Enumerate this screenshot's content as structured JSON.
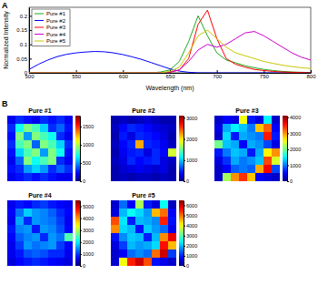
{
  "chart_data": [
    {
      "type": "line",
      "panel_label": "A",
      "x_label": "Wavelength (nm)",
      "y_label": "Normalized Intensity",
      "x": [
        500,
        510,
        520,
        530,
        540,
        550,
        560,
        570,
        580,
        590,
        600,
        610,
        620,
        630,
        640,
        650,
        660,
        670,
        680,
        690,
        700,
        710,
        720,
        730,
        740,
        750,
        760,
        770,
        780,
        790,
        800
      ],
      "xlim": [
        500,
        800
      ],
      "xticks": [
        500,
        550,
        600,
        650,
        700,
        750,
        800
      ],
      "ylim": [
        0,
        0.23
      ],
      "yticks": [
        0,
        0.05,
        0.1,
        0.15,
        0.2
      ],
      "legend": "upper left",
      "series": [
        {
          "name": "Pure #1",
          "color": "#1fa81f",
          "values": [
            0,
            0,
            0,
            0,
            0,
            0,
            0,
            0,
            0,
            0,
            0,
            0,
            0,
            0,
            0.003,
            0.01,
            0.04,
            0.11,
            0.2,
            0.13,
            0.07,
            0.045,
            0.035,
            0.025,
            0.018,
            0.012,
            0.008,
            0.005,
            0.003,
            0.002,
            0.001
          ]
        },
        {
          "name": "Pure #2",
          "color": "#0000ff",
          "values": [
            0.012,
            0.03,
            0.045,
            0.057,
            0.065,
            0.07,
            0.073,
            0.075,
            0.074,
            0.07,
            0.064,
            0.056,
            0.047,
            0.036,
            0.025,
            0.014,
            0.006,
            0.002,
            0,
            0,
            0,
            0,
            0,
            0,
            0,
            0,
            0,
            0,
            0,
            0,
            0
          ]
        },
        {
          "name": "Pure #3",
          "color": "#ff0000",
          "values": [
            0,
            0,
            0,
            0,
            0,
            0,
            0,
            0,
            0,
            0,
            0,
            0,
            0,
            0,
            0,
            0.002,
            0.01,
            0.05,
            0.17,
            0.22,
            0.12,
            0.05,
            0.03,
            0.02,
            0.012,
            0.008,
            0.005,
            0.003,
            0.002,
            0.001,
            0
          ]
        },
        {
          "name": "Pure #4",
          "color": "#cc00cc",
          "values": [
            0,
            0,
            0,
            0,
            0,
            0,
            0,
            0,
            0,
            0,
            0,
            0,
            0,
            0,
            0,
            0.003,
            0.01,
            0.04,
            0.08,
            0.1,
            0.09,
            0.1,
            0.12,
            0.14,
            0.145,
            0.13,
            0.11,
            0.09,
            0.07,
            0.055,
            0.045
          ]
        },
        {
          "name": "Pure #5",
          "color": "#c8c800",
          "values": [
            0,
            0,
            0,
            0,
            0,
            0,
            0,
            0,
            0,
            0,
            0,
            0,
            0,
            0,
            0,
            0.005,
            0.02,
            0.07,
            0.13,
            0.15,
            0.12,
            0.09,
            0.07,
            0.06,
            0.05,
            0.04,
            0.033,
            0.027,
            0.022,
            0.018,
            0.015
          ]
        }
      ]
    },
    {
      "type": "heatmap",
      "panel_label": "B",
      "title": "Pure #1",
      "colorbar_range": [
        0,
        1800
      ],
      "colorbar_ticks": [
        0,
        500,
        1000,
        1500
      ],
      "cells": [
        [
          200,
          300,
          250,
          200,
          300,
          250,
          300,
          200
        ],
        [
          300,
          700,
          900,
          800,
          600,
          300,
          400,
          250
        ],
        [
          250,
          900,
          500,
          900,
          800,
          700,
          300,
          200
        ],
        [
          300,
          800,
          900,
          400,
          900,
          800,
          600,
          300
        ],
        [
          250,
          600,
          800,
          900,
          500,
          900,
          700,
          250
        ],
        [
          200,
          400,
          900,
          700,
          800,
          900,
          300,
          200
        ],
        [
          250,
          300,
          500,
          600,
          500,
          300,
          400,
          300
        ],
        [
          200,
          250,
          300,
          250,
          300,
          250,
          200,
          200
        ]
      ]
    },
    {
      "type": "heatmap",
      "title": "Pure #2",
      "colorbar_range": [
        0,
        3100
      ],
      "colorbar_ticks": [
        0,
        1000,
        2000,
        3000
      ],
      "cells": [
        [
          150,
          200,
          150,
          200,
          250,
          200,
          150,
          150
        ],
        [
          200,
          400,
          500,
          450,
          400,
          300,
          250,
          200
        ],
        [
          150,
          450,
          300,
          500,
          450,
          400,
          300,
          150
        ],
        [
          200,
          400,
          500,
          2200,
          500,
          450,
          350,
          200
        ],
        [
          150,
          350,
          450,
          500,
          300,
          500,
          400,
          1800
        ],
        [
          200,
          300,
          500,
          400,
          450,
          500,
          300,
          200
        ],
        [
          150,
          250,
          300,
          350,
          300,
          250,
          300,
          150
        ],
        [
          150,
          200,
          150,
          200,
          200,
          150,
          200,
          150
        ]
      ]
    },
    {
      "type": "heatmap",
      "title": "Pure #3",
      "colorbar_range": [
        0,
        4100
      ],
      "colorbar_ticks": [
        0,
        1000,
        2000,
        3000,
        4000
      ],
      "cells": [
        [
          300,
          500,
          400,
          2500,
          600,
          400,
          1500,
          300
        ],
        [
          400,
          1200,
          1500,
          1300,
          1000,
          2800,
          3200,
          500
        ],
        [
          300,
          1400,
          600,
          1200,
          1100,
          1000,
          3500,
          600
        ],
        [
          2000,
          1300,
          1200,
          500,
          1200,
          1100,
          800,
          400
        ],
        [
          600,
          1000,
          1300,
          1200,
          600,
          1200,
          2600,
          3000
        ],
        [
          400,
          700,
          1200,
          1000,
          1100,
          1300,
          3300,
          2400
        ],
        [
          300,
          500,
          900,
          1000,
          900,
          2900,
          3600,
          800
        ],
        [
          300,
          2200,
          3000,
          3400,
          2800,
          500,
          400,
          300
        ]
      ]
    },
    {
      "type": "heatmap",
      "title": "Pure #4",
      "colorbar_range": [
        0,
        5500
      ],
      "colorbar_ticks": [
        0,
        1000,
        2000,
        3000,
        4000,
        5000
      ],
      "cells": [
        [
          600,
          800,
          700,
          900,
          1000,
          800,
          700,
          600
        ],
        [
          700,
          1300,
          1800,
          1500,
          1400,
          1200,
          900,
          700
        ],
        [
          600,
          1600,
          900,
          1500,
          1400,
          1300,
          1000,
          600
        ],
        [
          800,
          1400,
          1500,
          800,
          1500,
          1400,
          1100,
          700
        ],
        [
          700,
          1200,
          1400,
          1500,
          900,
          1500,
          1300,
          2500
        ],
        [
          600,
          1000,
          1500,
          1300,
          1400,
          1500,
          1000,
          700
        ],
        [
          600,
          800,
          1100,
          1200,
          1100,
          900,
          900,
          600
        ],
        [
          500,
          700,
          800,
          900,
          800,
          700,
          600,
          500
        ]
      ]
    },
    {
      "type": "heatmap",
      "title": "Pure #5",
      "colorbar_range": [
        0,
        6500
      ],
      "colorbar_ticks": [
        0,
        1000,
        2000,
        3000,
        4000,
        5000,
        6000
      ],
      "cells": [
        [
          500,
          1500,
          800,
          3500,
          1000,
          600,
          2500,
          400
        ],
        [
          600,
          2000,
          2500,
          2200,
          1800,
          4500,
          5000,
          800
        ],
        [
          5200,
          2300,
          1000,
          2000,
          1900,
          1700,
          5500,
          900
        ],
        [
          4800,
          2200,
          2000,
          900,
          2100,
          1800,
          1500,
          700
        ],
        [
          900,
          1700,
          2100,
          2000,
          1000,
          2000,
          4800,
          5800
        ],
        [
          600,
          1200,
          2000,
          1800,
          1900,
          2200,
          5600,
          4500
        ],
        [
          500,
          800,
          1500,
          1700,
          1500,
          5000,
          6000,
          1200
        ],
        [
          500,
          4000,
          5500,
          6000,
          5200,
          900,
          700,
          500
        ]
      ]
    }
  ]
}
